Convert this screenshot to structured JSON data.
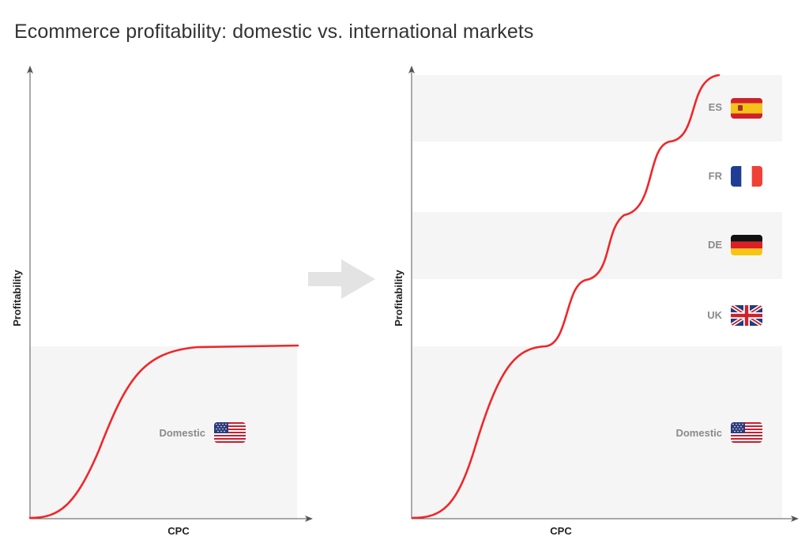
{
  "title": "Ecommerce profitability: domestic vs. international markets",
  "colors": {
    "curve": "#f0262a",
    "band": "#f5f5f5",
    "axis": "#555555",
    "arrow": "#e3e3e3",
    "label": "#8a8a8a"
  },
  "left_panel": {
    "ylabel": "Profitability",
    "xlabel": "CPC",
    "markets": [
      {
        "label": "Domestic",
        "flag": "us-flag-icon"
      }
    ]
  },
  "right_panel": {
    "ylabel": "Profitability",
    "xlabel": "CPC",
    "markets": [
      {
        "label": "ES",
        "flag": "spain-flag-icon"
      },
      {
        "label": "FR",
        "flag": "france-flag-icon"
      },
      {
        "label": "DE",
        "flag": "germany-flag-icon"
      },
      {
        "label": "UK",
        "flag": "uk-flag-icon"
      },
      {
        "label": "Domestic",
        "flag": "us-flag-icon"
      }
    ]
  },
  "transition_icon": "right-arrow-icon"
}
